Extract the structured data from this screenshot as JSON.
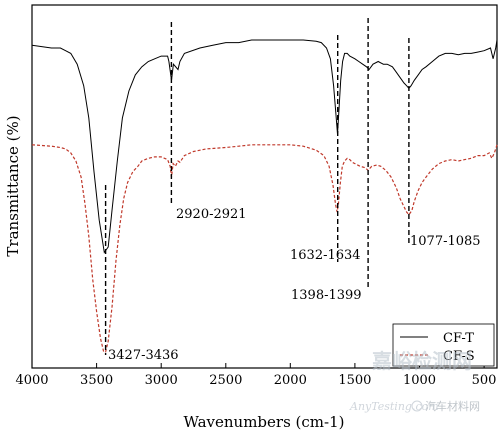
{
  "chart_data": {
    "type": "line",
    "xlabel": "Wavenumbers (cm-1)",
    "ylabel": "Transmittance (%)",
    "xlim": [
      4000,
      400
    ],
    "x_reversed": true,
    "x_ticks": [
      4000,
      3500,
      3000,
      2500,
      2000,
      1500,
      1000,
      500
    ],
    "y_ticks_shown": false,
    "legend_position": "bottom-right",
    "series": [
      {
        "name": "CF-T",
        "color": "#000000",
        "line_style": "solid",
        "points": [
          [
            4000,
            85
          ],
          [
            3850,
            84
          ],
          [
            3780,
            84
          ],
          [
            3740,
            83
          ],
          [
            3700,
            82
          ],
          [
            3650,
            78
          ],
          [
            3600,
            70
          ],
          [
            3560,
            58
          ],
          [
            3520,
            38
          ],
          [
            3480,
            20
          ],
          [
            3440,
            8
          ],
          [
            3410,
            10
          ],
          [
            3380,
            24
          ],
          [
            3340,
            42
          ],
          [
            3300,
            58
          ],
          [
            3250,
            68
          ],
          [
            3200,
            74
          ],
          [
            3150,
            77
          ],
          [
            3100,
            79
          ],
          [
            3050,
            80
          ],
          [
            3000,
            81
          ],
          [
            2950,
            81
          ],
          [
            2940,
            79
          ],
          [
            2920,
            72
          ],
          [
            2905,
            78
          ],
          [
            2870,
            76
          ],
          [
            2855,
            79
          ],
          [
            2820,
            82
          ],
          [
            2700,
            84
          ],
          [
            2600,
            85
          ],
          [
            2500,
            86
          ],
          [
            2400,
            86
          ],
          [
            2300,
            87
          ],
          [
            2200,
            87
          ],
          [
            2100,
            87
          ],
          [
            2000,
            87
          ],
          [
            1900,
            87
          ],
          [
            1800,
            86.5
          ],
          [
            1760,
            86
          ],
          [
            1720,
            84
          ],
          [
            1690,
            80
          ],
          [
            1665,
            70
          ],
          [
            1648,
            60
          ],
          [
            1635,
            52
          ],
          [
            1625,
            60
          ],
          [
            1610,
            72
          ],
          [
            1595,
            79
          ],
          [
            1580,
            82
          ],
          [
            1560,
            82
          ],
          [
            1540,
            81
          ],
          [
            1500,
            80
          ],
          [
            1470,
            79
          ],
          [
            1440,
            78
          ],
          [
            1410,
            77
          ],
          [
            1390,
            76
          ],
          [
            1360,
            78
          ],
          [
            1320,
            79
          ],
          [
            1280,
            78
          ],
          [
            1250,
            78
          ],
          [
            1210,
            77
          ],
          [
            1180,
            75
          ],
          [
            1150,
            73
          ],
          [
            1120,
            71
          ],
          [
            1100,
            70
          ],
          [
            1082,
            69
          ],
          [
            1065,
            70
          ],
          [
            1040,
            72
          ],
          [
            1010,
            74
          ],
          [
            980,
            76
          ],
          [
            950,
            77
          ],
          [
            900,
            79
          ],
          [
            850,
            81
          ],
          [
            800,
            82
          ],
          [
            750,
            82
          ],
          [
            700,
            81.5
          ],
          [
            650,
            82
          ],
          [
            600,
            82
          ],
          [
            550,
            82.5
          ],
          [
            500,
            83
          ],
          [
            450,
            84
          ],
          [
            430,
            80
          ],
          [
            410,
            84
          ],
          [
            400,
            87
          ]
        ]
      },
      {
        "name": "CF-S",
        "color": "#c0392b",
        "line_style": "dashed",
        "points": [
          [
            4000,
            48
          ],
          [
            3850,
            47.5
          ],
          [
            3780,
            47
          ],
          [
            3740,
            46.5
          ],
          [
            3700,
            45
          ],
          [
            3660,
            42
          ],
          [
            3620,
            36
          ],
          [
            3590,
            26
          ],
          [
            3560,
            14
          ],
          [
            3530,
            -2
          ],
          [
            3500,
            -14
          ],
          [
            3470,
            -24
          ],
          [
            3445,
            -29
          ],
          [
            3430,
            -29
          ],
          [
            3410,
            -25
          ],
          [
            3380,
            -12
          ],
          [
            3350,
            5
          ],
          [
            3320,
            18
          ],
          [
            3290,
            28
          ],
          [
            3260,
            34
          ],
          [
            3220,
            38
          ],
          [
            3180,
            40
          ],
          [
            3150,
            42
          ],
          [
            3100,
            43
          ],
          [
            3050,
            43.5
          ],
          [
            3000,
            43.5
          ],
          [
            2950,
            42.5
          ],
          [
            2930,
            40
          ],
          [
            2920,
            36
          ],
          [
            2908,
            41
          ],
          [
            2890,
            40
          ],
          [
            2870,
            42
          ],
          [
            2855,
            41.5
          ],
          [
            2820,
            44
          ],
          [
            2750,
            45.5
          ],
          [
            2650,
            46.5
          ],
          [
            2500,
            47
          ],
          [
            2400,
            47.5
          ],
          [
            2300,
            48
          ],
          [
            2200,
            48
          ],
          [
            2100,
            48
          ],
          [
            2000,
            48
          ],
          [
            1900,
            47.5
          ],
          [
            1800,
            46
          ],
          [
            1740,
            44
          ],
          [
            1700,
            40
          ],
          [
            1670,
            33
          ],
          [
            1650,
            26
          ],
          [
            1638,
            23
          ],
          [
            1628,
            26
          ],
          [
            1612,
            34
          ],
          [
            1598,
            40
          ],
          [
            1580,
            42
          ],
          [
            1560,
            43
          ],
          [
            1540,
            42.5
          ],
          [
            1520,
            41.5
          ],
          [
            1500,
            41
          ],
          [
            1460,
            40
          ],
          [
            1420,
            39.5
          ],
          [
            1398,
            38.5
          ],
          [
            1370,
            40
          ],
          [
            1330,
            40.5
          ],
          [
            1300,
            40
          ],
          [
            1260,
            38.5
          ],
          [
            1220,
            36
          ],
          [
            1180,
            32
          ],
          [
            1150,
            28
          ],
          [
            1120,
            25
          ],
          [
            1100,
            23
          ],
          [
            1082,
            22
          ],
          [
            1060,
            23.5
          ],
          [
            1040,
            27
          ],
          [
            1010,
            31
          ],
          [
            980,
            34
          ],
          [
            950,
            36
          ],
          [
            900,
            39
          ],
          [
            850,
            41
          ],
          [
            800,
            42
          ],
          [
            750,
            42.5
          ],
          [
            700,
            42
          ],
          [
            650,
            42.5
          ],
          [
            600,
            43
          ],
          [
            550,
            44
          ],
          [
            500,
            44
          ],
          [
            460,
            45
          ],
          [
            440,
            43
          ],
          [
            420,
            45
          ],
          [
            400,
            48
          ]
        ]
      }
    ],
    "annotations": [
      {
        "label": "2920-2921",
        "x": 2921
      },
      {
        "label": "3427-3436",
        "x": 3430
      },
      {
        "label": "1632-1634",
        "x": 1633
      },
      {
        "label": "1398-1399",
        "x": 1398
      },
      {
        "label": "1077-1085",
        "x": 1082
      }
    ]
  },
  "legend": {
    "items": [
      {
        "label": "CF-T"
      },
      {
        "label": "CF-S"
      }
    ]
  },
  "watermark": {
    "text_cn": "嘉峪检测网",
    "text_url": "AnyTesting.com",
    "source_label": "汽车材料网"
  }
}
